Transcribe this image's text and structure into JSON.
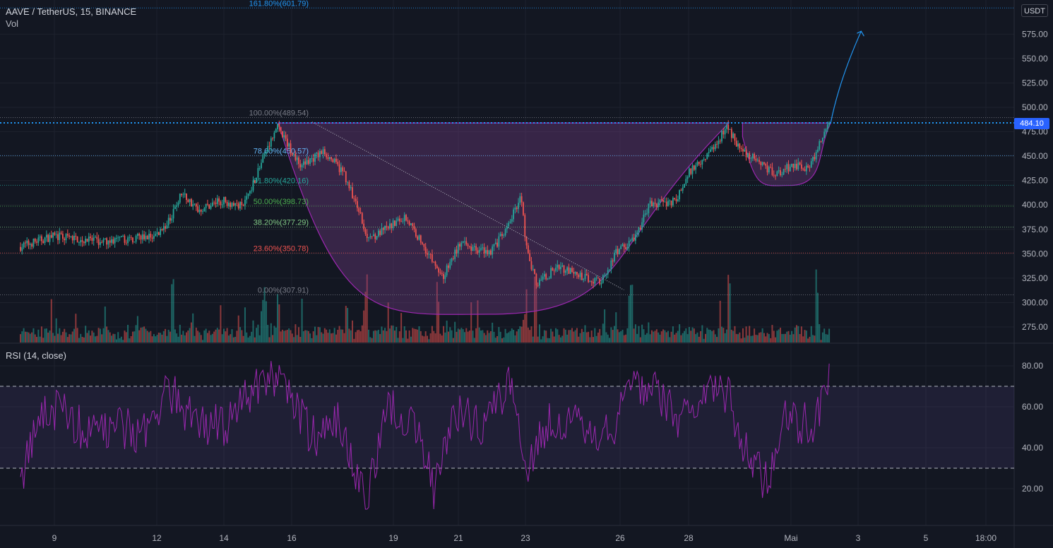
{
  "header": {
    "symbol": "AAVE / TetherUS, 15, BINANCE",
    "vol_label": "Vol",
    "rsi_label": "RSI (14, close)",
    "currency": "USDT",
    "last_price": "484.10"
  },
  "colors": {
    "background": "#131722",
    "up_candle": "#26a69a",
    "down_candle": "#ef5350",
    "rsi_line": "#9c27b0",
    "cup_fill": "#7b3f8c",
    "price_line": "#2196f3",
    "fib_100": "#787b86",
    "fib_786": "#64b5f6",
    "fib_618": "#26a69a",
    "fib_50": "#4caf50",
    "fib_382": "#81c784",
    "fib_236": "#ef5350",
    "fib_0": "#787b86",
    "fib_1618": "#2196f3"
  },
  "chart_data": [
    {
      "type": "candlestick",
      "title": "AAVE / TetherUS, 15, BINANCE",
      "y_axis_ticks": [
        "575.00",
        "550.00",
        "525.00",
        "500.00",
        "475.00",
        "450.00",
        "425.00",
        "400.00",
        "375.00",
        "350.00",
        "325.00",
        "300.00",
        "275.00"
      ],
      "y_tick_values": [
        575,
        550,
        525,
        500,
        475,
        450,
        425,
        400,
        375,
        350,
        325,
        300,
        275
      ],
      "ylim": [
        257,
        606
      ],
      "x_axis_ticks": [
        "9",
        "12",
        "14",
        "16",
        "19",
        "21",
        "23",
        "26",
        "28",
        "Mai",
        "3",
        "5",
        "18:00"
      ],
      "last_price": 484.1,
      "fib_levels": [
        {
          "label": "161.80%(601.79)",
          "ratio": 1.618,
          "value": 601.79
        },
        {
          "label": "100.00%(489.54)",
          "ratio": 1.0,
          "value": 489.54
        },
        {
          "label": "78.60%(450.57)",
          "ratio": 0.786,
          "value": 450.57
        },
        {
          "label": "61.80%(420.16)",
          "ratio": 0.618,
          "value": 420.16
        },
        {
          "label": "50.00%(398.73)",
          "ratio": 0.5,
          "value": 398.73
        },
        {
          "label": "38.20%(377.29)",
          "ratio": 0.382,
          "value": 377.29
        },
        {
          "label": "23.60%(350.78)",
          "ratio": 0.236,
          "value": 350.78
        },
        {
          "label": "0.00%(307.91)",
          "ratio": 0.0,
          "value": 307.91
        }
      ],
      "price_path": [
        {
          "day": 8.0,
          "price": 357
        },
        {
          "day": 9.0,
          "price": 368
        },
        {
          "day": 10.5,
          "price": 362
        },
        {
          "day": 12.0,
          "price": 368
        },
        {
          "day": 12.4,
          "price": 382
        },
        {
          "day": 12.8,
          "price": 412
        },
        {
          "day": 13.3,
          "price": 395
        },
        {
          "day": 14.0,
          "price": 405
        },
        {
          "day": 14.6,
          "price": 398
        },
        {
          "day": 15.0,
          "price": 430
        },
        {
          "day": 15.6,
          "price": 482
        },
        {
          "day": 16.3,
          "price": 440
        },
        {
          "day": 17.0,
          "price": 455
        },
        {
          "day": 17.6,
          "price": 432
        },
        {
          "day": 18.3,
          "price": 368
        },
        {
          "day": 18.6,
          "price": 370
        },
        {
          "day": 19.4,
          "price": 388
        },
        {
          "day": 20.0,
          "price": 355
        },
        {
          "day": 20.5,
          "price": 325
        },
        {
          "day": 21.0,
          "price": 360
        },
        {
          "day": 21.9,
          "price": 352
        },
        {
          "day": 22.4,
          "price": 375
        },
        {
          "day": 22.8,
          "price": 410
        },
        {
          "day": 23.0,
          "price": 350
        },
        {
          "day": 23.3,
          "price": 318
        },
        {
          "day": 23.9,
          "price": 338
        },
        {
          "day": 24.5,
          "price": 327
        },
        {
          "day": 25.2,
          "price": 322
        },
        {
          "day": 25.6,
          "price": 350
        },
        {
          "day": 26.2,
          "price": 368
        },
        {
          "day": 26.6,
          "price": 400
        },
        {
          "day": 27.4,
          "price": 405
        },
        {
          "day": 27.8,
          "price": 435
        },
        {
          "day": 28.4,
          "price": 455
        },
        {
          "day": 28.9,
          "price": 480
        },
        {
          "day": 29.3,
          "price": 455
        },
        {
          "day": 29.8,
          "price": 445
        },
        {
          "day": 30.3,
          "price": 432
        },
        {
          "day": 30.8,
          "price": 440
        },
        {
          "day": 31.3,
          "price": 438
        },
        {
          "day": 31.9,
          "price": 484
        }
      ],
      "cup_curve": [
        {
          "day": 15.6,
          "price": 484
        },
        {
          "day": 18.3,
          "price": 345
        },
        {
          "day": 21.8,
          "price": 288
        },
        {
          "day": 25.0,
          "price": 330
        },
        {
          "day": 26.6,
          "price": 400
        },
        {
          "day": 28.9,
          "price": 484
        }
      ],
      "handle_curve": [
        {
          "day": 29.3,
          "price": 470
        },
        {
          "day": 30.7,
          "price": 420
        },
        {
          "day": 31.9,
          "price": 484
        }
      ],
      "projection_arrow": [
        {
          "day": 31.9,
          "price": 484
        },
        {
          "day": 32.8,
          "price": 578
        }
      ],
      "trend_line": [
        {
          "day": 16.6,
          "price": 485
        },
        {
          "day": 25.8,
          "price": 313
        }
      ]
    },
    {
      "type": "line",
      "title": "RSI (14, close)",
      "y_axis_ticks": [
        "80.00",
        "60.00",
        "40.00",
        "20.00"
      ],
      "y_tick_values": [
        80,
        60,
        40,
        20
      ],
      "ylim": [
        8,
        88
      ],
      "band": [
        30,
        70
      ],
      "series_path": [
        {
          "day": 8.0,
          "value": 25
        },
        {
          "day": 8.6,
          "value": 55
        },
        {
          "day": 9.2,
          "value": 60
        },
        {
          "day": 10.0,
          "value": 45
        },
        {
          "day": 10.8,
          "value": 50
        },
        {
          "day": 11.6,
          "value": 48
        },
        {
          "day": 12.4,
          "value": 68
        },
        {
          "day": 13.0,
          "value": 55
        },
        {
          "day": 14.0,
          "value": 50
        },
        {
          "day": 15.2,
          "value": 75
        },
        {
          "day": 15.8,
          "value": 72
        },
        {
          "day": 16.6,
          "value": 45
        },
        {
          "day": 17.4,
          "value": 52
        },
        {
          "day": 18.2,
          "value": 12
        },
        {
          "day": 18.8,
          "value": 60
        },
        {
          "day": 19.6,
          "value": 50
        },
        {
          "day": 20.2,
          "value": 20
        },
        {
          "day": 20.8,
          "value": 58
        },
        {
          "day": 21.6,
          "value": 52
        },
        {
          "day": 22.4,
          "value": 70
        },
        {
          "day": 23.0,
          "value": 30
        },
        {
          "day": 23.6,
          "value": 55
        },
        {
          "day": 24.6,
          "value": 50
        },
        {
          "day": 25.4,
          "value": 45
        },
        {
          "day": 26.0,
          "value": 75
        },
        {
          "day": 26.6,
          "value": 68
        },
        {
          "day": 27.4,
          "value": 55
        },
        {
          "day": 28.2,
          "value": 70
        },
        {
          "day": 28.8,
          "value": 68
        },
        {
          "day": 29.4,
          "value": 40
        },
        {
          "day": 30.0,
          "value": 22
        },
        {
          "day": 30.6,
          "value": 55
        },
        {
          "day": 31.4,
          "value": 50
        },
        {
          "day": 31.9,
          "value": 74
        }
      ]
    }
  ]
}
